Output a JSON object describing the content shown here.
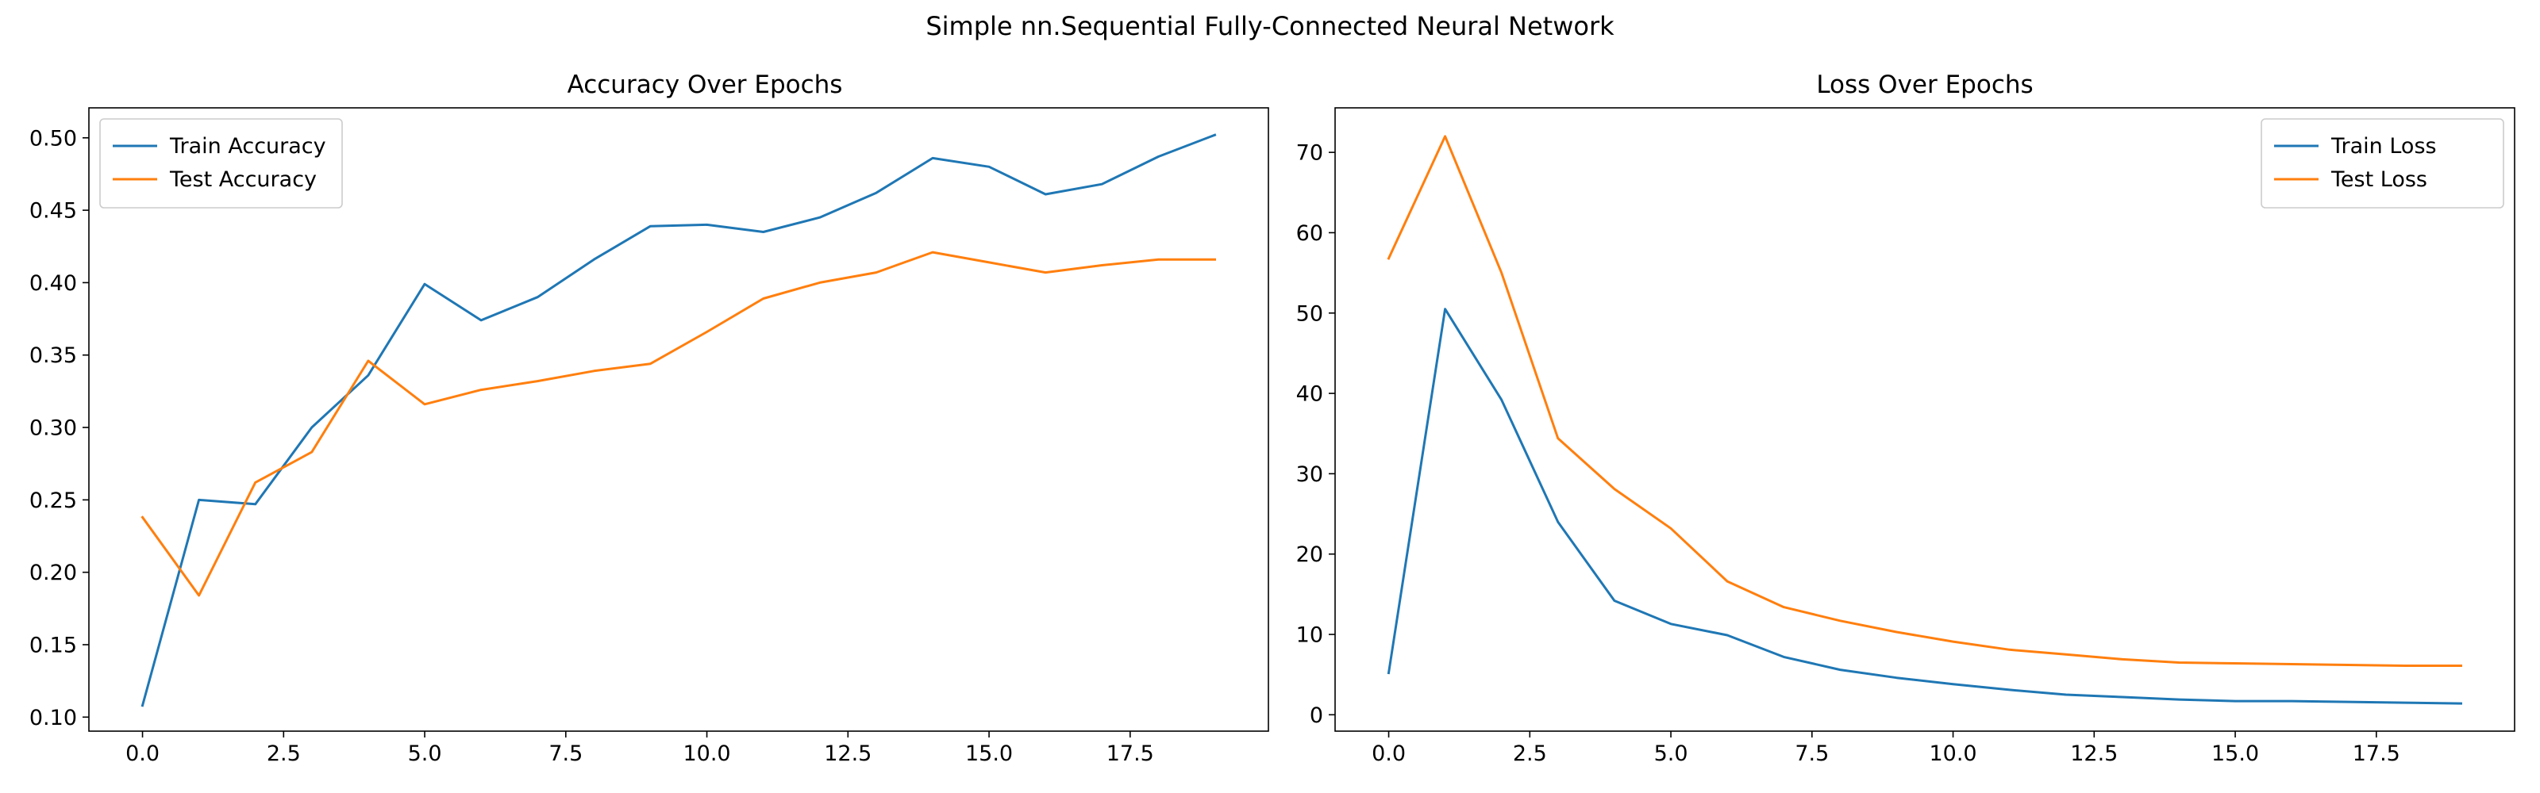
{
  "figure": {
    "suptitle": "Simple nn.Sequential Fully-Connected Neural Network"
  },
  "colors": {
    "train": "#1f77b4",
    "test": "#ff7f0e"
  },
  "chart_data": [
    {
      "type": "line",
      "title": "Accuracy Over Epochs",
      "xlabel": "",
      "ylabel": "",
      "xlim": [
        -0.95,
        19.95
      ],
      "ylim": [
        0.0903,
        0.5207
      ],
      "xticks": [
        0.0,
        2.5,
        5.0,
        7.5,
        10.0,
        12.5,
        15.0,
        17.5
      ],
      "xtick_labels": [
        "0.0",
        "2.5",
        "5.0",
        "7.5",
        "10.0",
        "12.5",
        "15.0",
        "17.5"
      ],
      "yticks": [
        0.1,
        0.15,
        0.2,
        0.25,
        0.3,
        0.35,
        0.4,
        0.45,
        0.5
      ],
      "ytick_labels": [
        "0.10",
        "0.15",
        "0.20",
        "0.25",
        "0.30",
        "0.35",
        "0.40",
        "0.45",
        "0.50"
      ],
      "legend_position": "upper-left",
      "grid": false,
      "x": [
        0,
        1,
        2,
        3,
        4,
        5,
        6,
        7,
        8,
        9,
        10,
        11,
        12,
        13,
        14,
        15,
        16,
        17,
        18,
        19
      ],
      "series": [
        {
          "name": "Train Accuracy",
          "color": "#1f77b4",
          "values": [
            0.108,
            0.25,
            0.247,
            0.3,
            0.336,
            0.399,
            0.374,
            0.39,
            0.416,
            0.439,
            0.44,
            0.435,
            0.445,
            0.462,
            0.486,
            0.48,
            0.461,
            0.468,
            0.487,
            0.502
          ]
        },
        {
          "name": "Test Accuracy",
          "color": "#ff7f0e",
          "values": [
            0.238,
            0.184,
            0.262,
            0.283,
            0.346,
            0.316,
            0.326,
            0.332,
            0.339,
            0.344,
            0.366,
            0.389,
            0.4,
            0.407,
            0.421,
            0.414,
            0.407,
            0.412,
            0.416,
            0.416
          ]
        }
      ]
    },
    {
      "type": "line",
      "title": "Loss Over Epochs",
      "xlabel": "",
      "ylabel": "",
      "xlim": [
        -0.95,
        19.95
      ],
      "ylim": [
        -2.04,
        75.54
      ],
      "xticks": [
        0.0,
        2.5,
        5.0,
        7.5,
        10.0,
        12.5,
        15.0,
        17.5
      ],
      "xtick_labels": [
        "0.0",
        "2.5",
        "5.0",
        "7.5",
        "10.0",
        "12.5",
        "15.0",
        "17.5"
      ],
      "yticks": [
        0,
        10,
        20,
        30,
        40,
        50,
        60,
        70
      ],
      "ytick_labels": [
        "0",
        "10",
        "20",
        "30",
        "40",
        "50",
        "60",
        "70"
      ],
      "legend_position": "upper-right",
      "grid": false,
      "x": [
        0,
        1,
        2,
        3,
        4,
        5,
        6,
        7,
        8,
        9,
        10,
        11,
        12,
        13,
        14,
        15,
        16,
        17,
        18,
        19
      ],
      "series": [
        {
          "name": "Train Loss",
          "color": "#1f77b4",
          "values": [
            5.2,
            50.5,
            39.2,
            24.0,
            14.2,
            11.3,
            9.9,
            7.2,
            5.6,
            4.6,
            3.8,
            3.1,
            2.5,
            2.2,
            1.9,
            1.7,
            1.7,
            1.6,
            1.5,
            1.4
          ]
        },
        {
          "name": "Test Loss",
          "color": "#ff7f0e",
          "values": [
            56.8,
            72.0,
            55.0,
            34.4,
            28.1,
            23.2,
            16.6,
            13.4,
            11.7,
            10.3,
            9.1,
            8.1,
            7.5,
            6.9,
            6.5,
            6.4,
            6.3,
            6.2,
            6.1,
            6.1
          ]
        }
      ]
    }
  ]
}
